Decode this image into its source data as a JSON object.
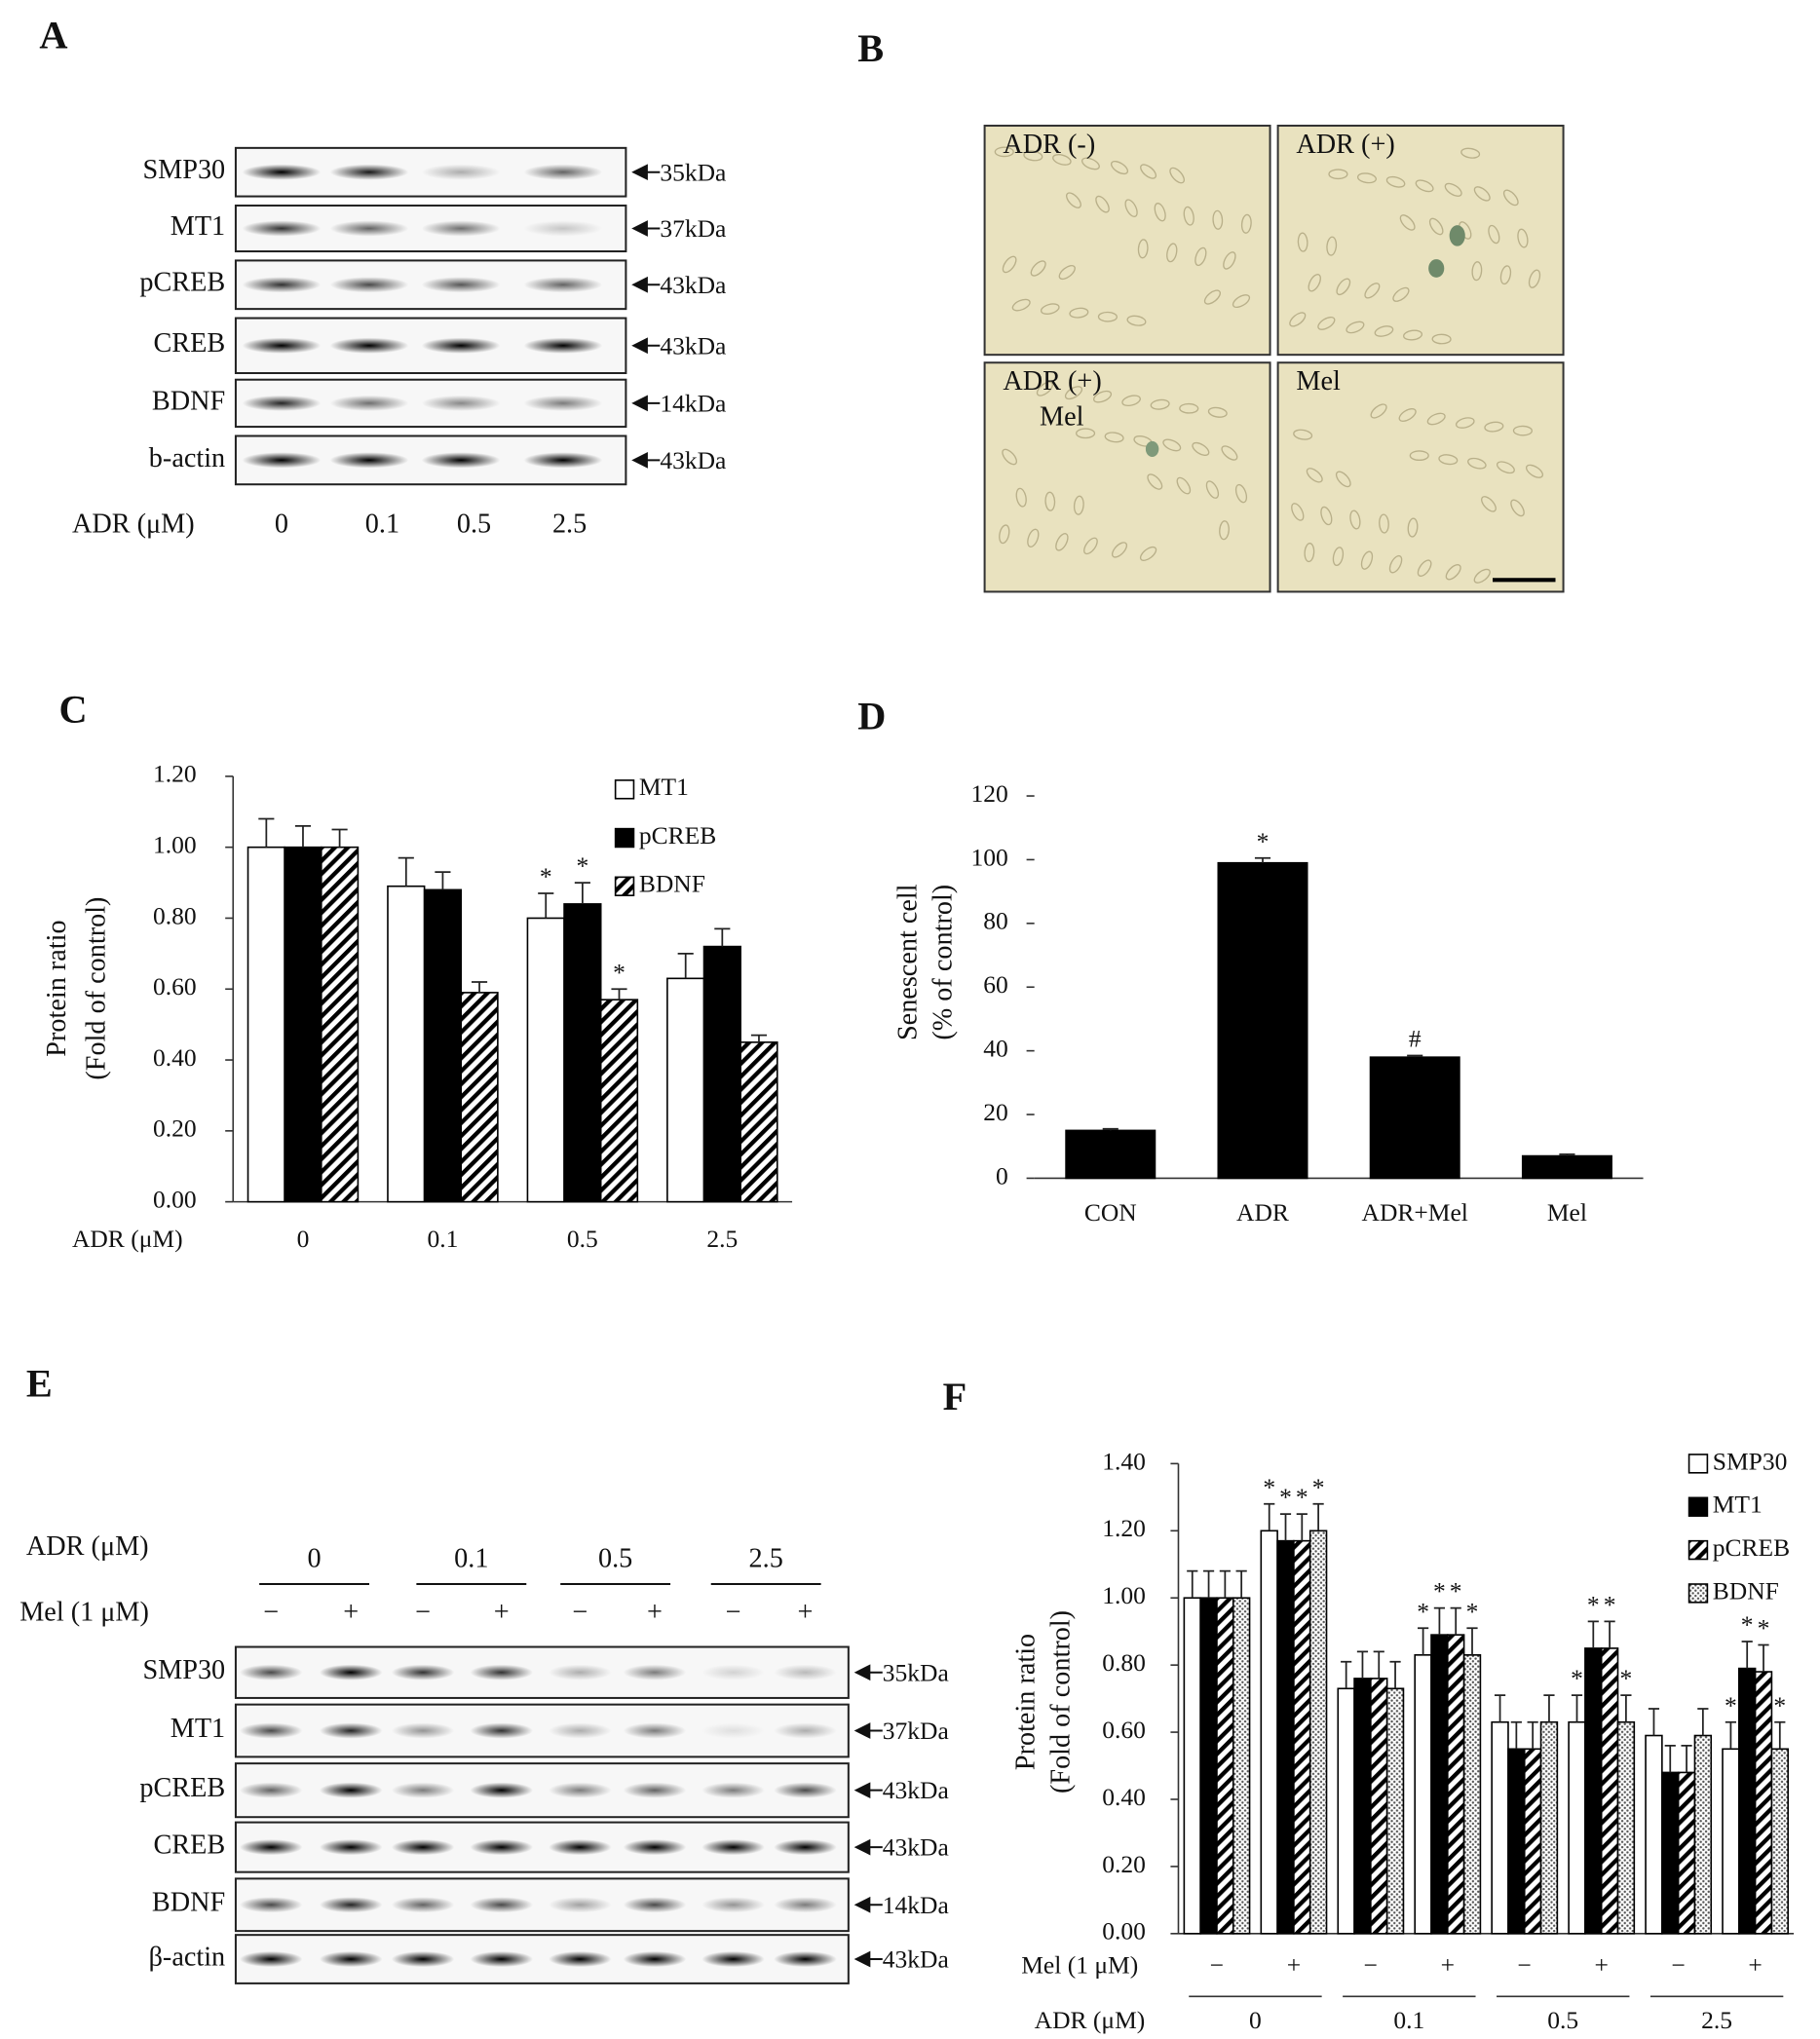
{
  "figure": {
    "panel_a": {
      "label": "A",
      "rows": [
        {
          "name": "SMP30",
          "size": "35kDa"
        },
        {
          "name": "MT1",
          "size": "37kDa"
        },
        {
          "name": "pCREB",
          "size": "43kDa"
        },
        {
          "name": "CREB",
          "size": "43kDa"
        },
        {
          "name": "BDNF",
          "size": "14kDa"
        },
        {
          "name": "b-actin",
          "size": "43kDa"
        }
      ],
      "dose_title": "ADR (μM)",
      "doses": [
        "0",
        "0.1",
        "0.5",
        "2.5"
      ]
    },
    "panel_b": {
      "label": "B",
      "images": [
        [
          "ADR (-)"
        ],
        [
          "ADR (+)"
        ],
        [
          "ADR (+)",
          "Mel"
        ],
        [
          "Mel"
        ]
      ]
    },
    "panel_e": {
      "label": "E",
      "dose_title": "ADR (μM)",
      "doses": [
        "0",
        "0.1",
        "0.5",
        "2.5"
      ],
      "mel_title": "Mel (1 μM)",
      "mel_signs": [
        "−",
        "+",
        "−",
        "+",
        "−",
        "+",
        "−",
        "+"
      ],
      "rows": [
        {
          "name": "SMP30",
          "size": "35kDa"
        },
        {
          "name": "MT1",
          "size": "37kDa"
        },
        {
          "name": "pCREB",
          "size": "43kDa"
        },
        {
          "name": "CREB",
          "size": "43kDa"
        },
        {
          "name": "BDNF",
          "size": "14kDa"
        },
        {
          "name": "β-actin",
          "size": "43kDa"
        }
      ]
    }
  },
  "chart_data": [
    {
      "type": "bar",
      "panel": "C",
      "ylabel": [
        "Protein ratio",
        "(Fold of control)"
      ],
      "xlabel": "ADR (μM)",
      "categories": [
        "0",
        "0.1",
        "0.5",
        "2.5"
      ],
      "series": [
        {
          "name": "MT1",
          "color": "#ffffff",
          "pattern": "solid",
          "values": [
            1.0,
            0.89,
            0.8,
            0.63
          ],
          "errors": [
            0.08,
            0.08,
            0.07,
            0.07
          ],
          "significance": [
            null,
            null,
            "*",
            null
          ]
        },
        {
          "name": "pCREB",
          "color": "#000000",
          "pattern": "solid",
          "values": [
            1.0,
            0.88,
            0.84,
            0.72
          ],
          "errors": [
            0.06,
            0.05,
            0.06,
            0.05
          ],
          "significance": [
            null,
            null,
            "*",
            null
          ]
        },
        {
          "name": "BDNF",
          "color": "#000000",
          "pattern": "hatch",
          "values": [
            1.0,
            0.59,
            0.57,
            0.45
          ],
          "errors": [
            0.05,
            0.03,
            0.03,
            0.02
          ],
          "significance": [
            null,
            null,
            "*",
            null
          ]
        }
      ],
      "ylim": [
        0,
        1.2
      ],
      "yticks": [
        {
          "value": 0,
          "label": "0.00"
        },
        {
          "value": 0.2,
          "label": "0.20"
        },
        {
          "value": 0.4,
          "label": "0.40"
        },
        {
          "value": 0.6,
          "label": "0.60"
        },
        {
          "value": 0.8,
          "label": "0.80"
        },
        {
          "value": 1.0,
          "label": "1.00"
        },
        {
          "value": 1.2,
          "label": "1.20"
        }
      ],
      "y_axis_line": true,
      "legend": "top-right"
    },
    {
      "type": "bar",
      "panel": "D",
      "ylabel": [
        "Senescent cell",
        "(% of control)"
      ],
      "categories": [
        "CON",
        "ADR",
        "ADR+Mel",
        "Mel"
      ],
      "values": [
        15,
        99,
        38,
        7
      ],
      "errors": [
        0.5,
        1.5,
        0.5,
        0.5
      ],
      "significance": [
        null,
        "*",
        "#",
        null
      ],
      "color": "#000000",
      "ylim": [
        0,
        120
      ],
      "yticks": [
        0,
        20,
        40,
        60,
        80,
        100,
        120
      ],
      "y_axis_line": false
    },
    {
      "type": "bar",
      "panel": "F",
      "ylabel": [
        "Protein ratio",
        "(Fold of control)"
      ],
      "xlabel": "Mel (1 μM)",
      "categories": [
        "−",
        "+",
        "−",
        "+",
        "−",
        "+",
        "−",
        "+"
      ],
      "group_title": "ADR (μM)",
      "group_labels": [
        "0",
        "0.1",
        "0.5",
        "2.5"
      ],
      "series": [
        {
          "name": "SMP30",
          "color": "#ffffff",
          "pattern": "solid",
          "values": [
            1.0,
            1.2,
            0.73,
            0.83,
            0.63,
            0.63,
            0.59,
            0.55
          ],
          "errors": [
            0.08,
            0.08,
            0.08,
            0.08,
            0.08,
            0.08,
            0.08,
            0.08
          ],
          "significance": [
            null,
            "*",
            null,
            "*",
            null,
            "*",
            null,
            "*"
          ]
        },
        {
          "name": "MT1",
          "color": "#000000",
          "pattern": "solid",
          "values": [
            1.0,
            1.17,
            0.76,
            0.89,
            0.55,
            0.85,
            0.48,
            0.79
          ],
          "errors": [
            0.08,
            0.08,
            0.08,
            0.08,
            0.08,
            0.08,
            0.08,
            0.08
          ],
          "significance": [
            null,
            "*",
            null,
            "*",
            null,
            "*",
            null,
            "*"
          ]
        },
        {
          "name": "pCREB",
          "color": "#000000",
          "pattern": "hatch",
          "values": [
            1.0,
            1.17,
            0.76,
            0.89,
            0.55,
            0.85,
            0.48,
            0.78
          ],
          "errors": [
            0.08,
            0.08,
            0.08,
            0.08,
            0.08,
            0.08,
            0.08,
            0.08
          ],
          "significance": [
            null,
            "*",
            null,
            "*",
            null,
            "*",
            null,
            "*"
          ]
        },
        {
          "name": "BDNF",
          "color": "#000000",
          "pattern": "dots",
          "values": [
            1.0,
            1.2,
            0.73,
            0.83,
            0.63,
            0.63,
            0.59,
            0.55
          ],
          "errors": [
            0.08,
            0.08,
            0.08,
            0.08,
            0.08,
            0.08,
            0.08,
            0.08
          ],
          "significance": [
            null,
            "*",
            null,
            "*",
            null,
            "*",
            null,
            "*"
          ]
        }
      ],
      "ylim": [
        0,
        1.4
      ],
      "yticks": [
        {
          "value": 0,
          "label": "0.00"
        },
        {
          "value": 0.2,
          "label": "0.20"
        },
        {
          "value": 0.4,
          "label": "0.40"
        },
        {
          "value": 0.6,
          "label": "0.60"
        },
        {
          "value": 0.8,
          "label": "0.80"
        },
        {
          "value": 1.0,
          "label": "1.00"
        },
        {
          "value": 1.2,
          "label": "1.20"
        },
        {
          "value": 1.4,
          "label": "1.40"
        }
      ],
      "y_axis_line": true,
      "legend": "top-right"
    }
  ]
}
